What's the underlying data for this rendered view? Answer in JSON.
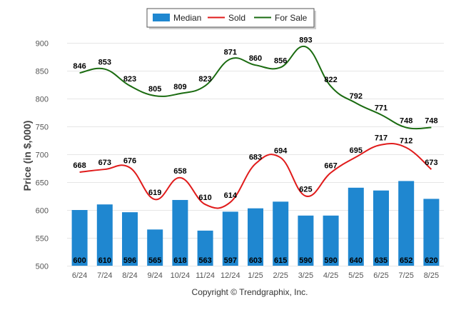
{
  "chart_data": {
    "type": "bar",
    "title": "",
    "xlabel": "",
    "ylabel": "Price (in $,000)",
    "ylim": [
      500,
      900
    ],
    "yticks": [
      500,
      550,
      600,
      650,
      700,
      750,
      800,
      850,
      900
    ],
    "grid": true,
    "legend_position": "top-center",
    "categories": [
      "6/24",
      "7/24",
      "8/24",
      "9/24",
      "10/24",
      "11/24",
      "12/24",
      "1/25",
      "2/25",
      "3/25",
      "4/25",
      "5/25",
      "6/25",
      "7/25",
      "8/25"
    ],
    "series": [
      {
        "name": "Median",
        "type": "bar",
        "color": "#1f87d0",
        "values": [
          600,
          610,
          596,
          565,
          618,
          563,
          597,
          603,
          615,
          590,
          590,
          640,
          635,
          652,
          620
        ]
      },
      {
        "name": "Sold",
        "type": "line",
        "color": "#e01b1b",
        "values": [
          668,
          673,
          676,
          619,
          658,
          610,
          614,
          683,
          694,
          625,
          667,
          695,
          717,
          712,
          673
        ]
      },
      {
        "name": "For Sale",
        "type": "line",
        "color": "#1a6b10",
        "values": [
          846,
          853,
          823,
          805,
          809,
          823,
          871,
          860,
          856,
          893,
          822,
          792,
          771,
          748,
          748
        ]
      }
    ]
  },
  "footer": {
    "credit": "Copyright © Trendgraphix, Inc."
  }
}
